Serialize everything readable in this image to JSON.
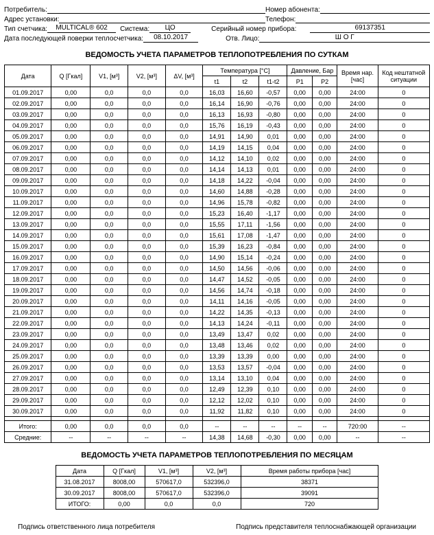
{
  "header": {
    "consumer_lbl": "Потребитель:",
    "consumer_val": "",
    "subscriber_num_lbl": "Номер абонента:",
    "subscriber_num_val": "",
    "install_addr_lbl": "Адрес установки:",
    "install_addr_val": "",
    "phone_lbl": "Телефон:",
    "phone_val": "",
    "meter_type_lbl": "Тип счетчика:",
    "meter_type_val": "MULTICAL® 602",
    "system_lbl": "Система:",
    "system_val": "ЦО",
    "serial_lbl": "Серийный номер прибора:",
    "serial_val": "69137351",
    "next_check_lbl": "Дата последующей поверки теплосчетчика:",
    "next_check_val": "08.10.2017",
    "resp_lbl": "Отв. Лицо:",
    "resp_val": "Ш О Г"
  },
  "daily_title": "ВЕДОМОСТЬ УЧЕТА ПАРАМЕТРОВ ТЕПЛОПОТРЕБЛЕНИЯ ПО СУТКАМ",
  "daily_cols": {
    "date": "Дата",
    "q": "Q [Гкал]",
    "v1": "V1, [м³]",
    "v2": "V2, [м³]",
    "dv": "ΔV, [м³]",
    "temp": "Температура [°C]",
    "t1": "t1",
    "t2": "t2",
    "t1t2": "t1-t2",
    "press": "Давление, Бар",
    "p1": "P1",
    "p2": "P2",
    "time": "Время нар. [час]",
    "err": "Код нештатной ситуации"
  },
  "daily_rows": [
    {
      "d": "01.09.2017",
      "q": "0,00",
      "v1": "0,0",
      "v2": "0,0",
      "dv": "0,0",
      "t1": "16,03",
      "t2": "16,60",
      "tt": "-0,57",
      "p1": "0,00",
      "p2": "0,00",
      "tm": "24:00",
      "e": "0"
    },
    {
      "d": "02.09.2017",
      "q": "0,00",
      "v1": "0,0",
      "v2": "0,0",
      "dv": "0,0",
      "t1": "16,14",
      "t2": "16,90",
      "tt": "-0,76",
      "p1": "0,00",
      "p2": "0,00",
      "tm": "24:00",
      "e": "0"
    },
    {
      "d": "03.09.2017",
      "q": "0,00",
      "v1": "0,0",
      "v2": "0,0",
      "dv": "0,0",
      "t1": "16,13",
      "t2": "16,93",
      "tt": "-0,80",
      "p1": "0,00",
      "p2": "0,00",
      "tm": "24:00",
      "e": "0"
    },
    {
      "d": "04.09.2017",
      "q": "0,00",
      "v1": "0,0",
      "v2": "0,0",
      "dv": "0,0",
      "t1": "15,76",
      "t2": "16,19",
      "tt": "-0,43",
      "p1": "0,00",
      "p2": "0,00",
      "tm": "24:00",
      "e": "0"
    },
    {
      "d": "05.09.2017",
      "q": "0,00",
      "v1": "0,0",
      "v2": "0,0",
      "dv": "0,0",
      "t1": "14,91",
      "t2": "14,90",
      "tt": "0,01",
      "p1": "0,00",
      "p2": "0,00",
      "tm": "24:00",
      "e": "0"
    },
    {
      "d": "06.09.2017",
      "q": "0,00",
      "v1": "0,0",
      "v2": "0,0",
      "dv": "0,0",
      "t1": "14,19",
      "t2": "14,15",
      "tt": "0,04",
      "p1": "0,00",
      "p2": "0,00",
      "tm": "24:00",
      "e": "0"
    },
    {
      "d": "07.09.2017",
      "q": "0,00",
      "v1": "0,0",
      "v2": "0,0",
      "dv": "0,0",
      "t1": "14,12",
      "t2": "14,10",
      "tt": "0,02",
      "p1": "0,00",
      "p2": "0,00",
      "tm": "24:00",
      "e": "0"
    },
    {
      "d": "08.09.2017",
      "q": "0,00",
      "v1": "0,0",
      "v2": "0,0",
      "dv": "0,0",
      "t1": "14,14",
      "t2": "14,13",
      "tt": "0,01",
      "p1": "0,00",
      "p2": "0,00",
      "tm": "24:00",
      "e": "0"
    },
    {
      "d": "09.09.2017",
      "q": "0,00",
      "v1": "0,0",
      "v2": "0,0",
      "dv": "0,0",
      "t1": "14,18",
      "t2": "14,22",
      "tt": "-0,04",
      "p1": "0,00",
      "p2": "0,00",
      "tm": "24:00",
      "e": "0"
    },
    {
      "d": "10.09.2017",
      "q": "0,00",
      "v1": "0,0",
      "v2": "0,0",
      "dv": "0,0",
      "t1": "14,60",
      "t2": "14,88",
      "tt": "-0,28",
      "p1": "0,00",
      "p2": "0,00",
      "tm": "24:00",
      "e": "0"
    },
    {
      "d": "11.09.2017",
      "q": "0,00",
      "v1": "0,0",
      "v2": "0,0",
      "dv": "0,0",
      "t1": "14,96",
      "t2": "15,78",
      "tt": "-0,82",
      "p1": "0,00",
      "p2": "0,00",
      "tm": "24:00",
      "e": "0"
    },
    {
      "d": "12.09.2017",
      "q": "0,00",
      "v1": "0,0",
      "v2": "0,0",
      "dv": "0,0",
      "t1": "15,23",
      "t2": "16,40",
      "tt": "-1,17",
      "p1": "0,00",
      "p2": "0,00",
      "tm": "24:00",
      "e": "0"
    },
    {
      "d": "13.09.2017",
      "q": "0,00",
      "v1": "0,0",
      "v2": "0,0",
      "dv": "0,0",
      "t1": "15,55",
      "t2": "17,11",
      "tt": "-1,56",
      "p1": "0,00",
      "p2": "0,00",
      "tm": "24:00",
      "e": "0"
    },
    {
      "d": "14.09.2017",
      "q": "0,00",
      "v1": "0,0",
      "v2": "0,0",
      "dv": "0,0",
      "t1": "15,61",
      "t2": "17,08",
      "tt": "-1,47",
      "p1": "0,00",
      "p2": "0,00",
      "tm": "24:00",
      "e": "0"
    },
    {
      "d": "15.09.2017",
      "q": "0,00",
      "v1": "0,0",
      "v2": "0,0",
      "dv": "0,0",
      "t1": "15,39",
      "t2": "16,23",
      "tt": "-0,84",
      "p1": "0,00",
      "p2": "0,00",
      "tm": "24:00",
      "e": "0"
    },
    {
      "d": "16.09.2017",
      "q": "0,00",
      "v1": "0,0",
      "v2": "0,0",
      "dv": "0,0",
      "t1": "14,90",
      "t2": "15,14",
      "tt": "-0,24",
      "p1": "0,00",
      "p2": "0,00",
      "tm": "24:00",
      "e": "0"
    },
    {
      "d": "17.09.2017",
      "q": "0,00",
      "v1": "0,0",
      "v2": "0,0",
      "dv": "0,0",
      "t1": "14,50",
      "t2": "14,56",
      "tt": "-0,06",
      "p1": "0,00",
      "p2": "0,00",
      "tm": "24:00",
      "e": "0"
    },
    {
      "d": "18.09.2017",
      "q": "0,00",
      "v1": "0,0",
      "v2": "0,0",
      "dv": "0,0",
      "t1": "14,47",
      "t2": "14,52",
      "tt": "-0,05",
      "p1": "0,00",
      "p2": "0,00",
      "tm": "24:00",
      "e": "0"
    },
    {
      "d": "19.09.2017",
      "q": "0,00",
      "v1": "0,0",
      "v2": "0,0",
      "dv": "0,0",
      "t1": "14,56",
      "t2": "14,74",
      "tt": "-0,18",
      "p1": "0,00",
      "p2": "0,00",
      "tm": "24:00",
      "e": "0"
    },
    {
      "d": "20.09.2017",
      "q": "0,00",
      "v1": "0,0",
      "v2": "0,0",
      "dv": "0,0",
      "t1": "14,11",
      "t2": "14,16",
      "tt": "-0,05",
      "p1": "0,00",
      "p2": "0,00",
      "tm": "24:00",
      "e": "0"
    },
    {
      "d": "21.09.2017",
      "q": "0,00",
      "v1": "0,0",
      "v2": "0,0",
      "dv": "0,0",
      "t1": "14,22",
      "t2": "14,35",
      "tt": "-0,13",
      "p1": "0,00",
      "p2": "0,00",
      "tm": "24:00",
      "e": "0"
    },
    {
      "d": "22.09.2017",
      "q": "0,00",
      "v1": "0,0",
      "v2": "0,0",
      "dv": "0,0",
      "t1": "14,13",
      "t2": "14,24",
      "tt": "-0,11",
      "p1": "0,00",
      "p2": "0,00",
      "tm": "24:00",
      "e": "0"
    },
    {
      "d": "23.09.2017",
      "q": "0,00",
      "v1": "0,0",
      "v2": "0,0",
      "dv": "0,0",
      "t1": "13,49",
      "t2": "13,47",
      "tt": "0,02",
      "p1": "0,00",
      "p2": "0,00",
      "tm": "24:00",
      "e": "0"
    },
    {
      "d": "24.09.2017",
      "q": "0,00",
      "v1": "0,0",
      "v2": "0,0",
      "dv": "0,0",
      "t1": "13,48",
      "t2": "13,46",
      "tt": "0,02",
      "p1": "0,00",
      "p2": "0,00",
      "tm": "24:00",
      "e": "0"
    },
    {
      "d": "25.09.2017",
      "q": "0,00",
      "v1": "0,0",
      "v2": "0,0",
      "dv": "0,0",
      "t1": "13,39",
      "t2": "13,39",
      "tt": "0,00",
      "p1": "0,00",
      "p2": "0,00",
      "tm": "24:00",
      "e": "0"
    },
    {
      "d": "26.09.2017",
      "q": "0,00",
      "v1": "0,0",
      "v2": "0,0",
      "dv": "0,0",
      "t1": "13,53",
      "t2": "13,57",
      "tt": "-0,04",
      "p1": "0,00",
      "p2": "0,00",
      "tm": "24:00",
      "e": "0"
    },
    {
      "d": "27.09.2017",
      "q": "0,00",
      "v1": "0,0",
      "v2": "0,0",
      "dv": "0,0",
      "t1": "13,14",
      "t2": "13,10",
      "tt": "0,04",
      "p1": "0,00",
      "p2": "0,00",
      "tm": "24:00",
      "e": "0"
    },
    {
      "d": "28.09.2017",
      "q": "0,00",
      "v1": "0,0",
      "v2": "0,0",
      "dv": "0,0",
      "t1": "12,49",
      "t2": "12,39",
      "tt": "0,10",
      "p1": "0,00",
      "p2": "0,00",
      "tm": "24:00",
      "e": "0"
    },
    {
      "d": "29.09.2017",
      "q": "0,00",
      "v1": "0,0",
      "v2": "0,0",
      "dv": "0,0",
      "t1": "12,12",
      "t2": "12,02",
      "tt": "0,10",
      "p1": "0,00",
      "p2": "0,00",
      "tm": "24:00",
      "e": "0"
    },
    {
      "d": "30.09.2017",
      "q": "0,00",
      "v1": "0,0",
      "v2": "0,0",
      "dv": "0,0",
      "t1": "11,92",
      "t2": "11,82",
      "tt": "0,10",
      "p1": "0,00",
      "p2": "0,00",
      "tm": "24:00",
      "e": "0"
    }
  ],
  "daily_totals": {
    "label": "Итого:",
    "q": "0,00",
    "v1": "0,0",
    "v2": "0,0",
    "dv": "0,0",
    "t1": "--",
    "t2": "--",
    "tt": "--",
    "p1": "--",
    "p2": "--",
    "tm": "720:00",
    "e": "--"
  },
  "daily_avg": {
    "label": "Средние:",
    "q": "--",
    "v1": "--",
    "v2": "--",
    "dv": "--",
    "t1": "14,38",
    "t2": "14,68",
    "tt": "-0,30",
    "p1": "0,00",
    "p2": "0,00",
    "tm": "--",
    "e": "--"
  },
  "monthly_title": "ВЕДОМОСТЬ УЧЕТА ПАРАМЕТРОВ ТЕПЛОПОТРЕБЛЕНИЯ ПО МЕСЯЦАМ",
  "monthly_cols": {
    "date": "Дата",
    "q": "Q [Гкал]",
    "v1": "V1, [м³]",
    "v2": "V2, [м³]",
    "time": "Время работы прибора [час]"
  },
  "monthly_rows": [
    {
      "d": "31.08.2017",
      "q": "8008,00",
      "v1": "570617,0",
      "v2": "532396,0",
      "t": "38371"
    },
    {
      "d": "30.09.2017",
      "q": "8008,00",
      "v1": "570617,0",
      "v2": "532396,0",
      "t": "39091"
    },
    {
      "d": "ИТОГО:",
      "q": "0,00",
      "v1": "0,0",
      "v2": "0,0",
      "t": "720"
    }
  ],
  "sig": {
    "left": "Подпись ответственного лица потребителя",
    "right": "Подпись представителя теплоснабжающей организации"
  }
}
